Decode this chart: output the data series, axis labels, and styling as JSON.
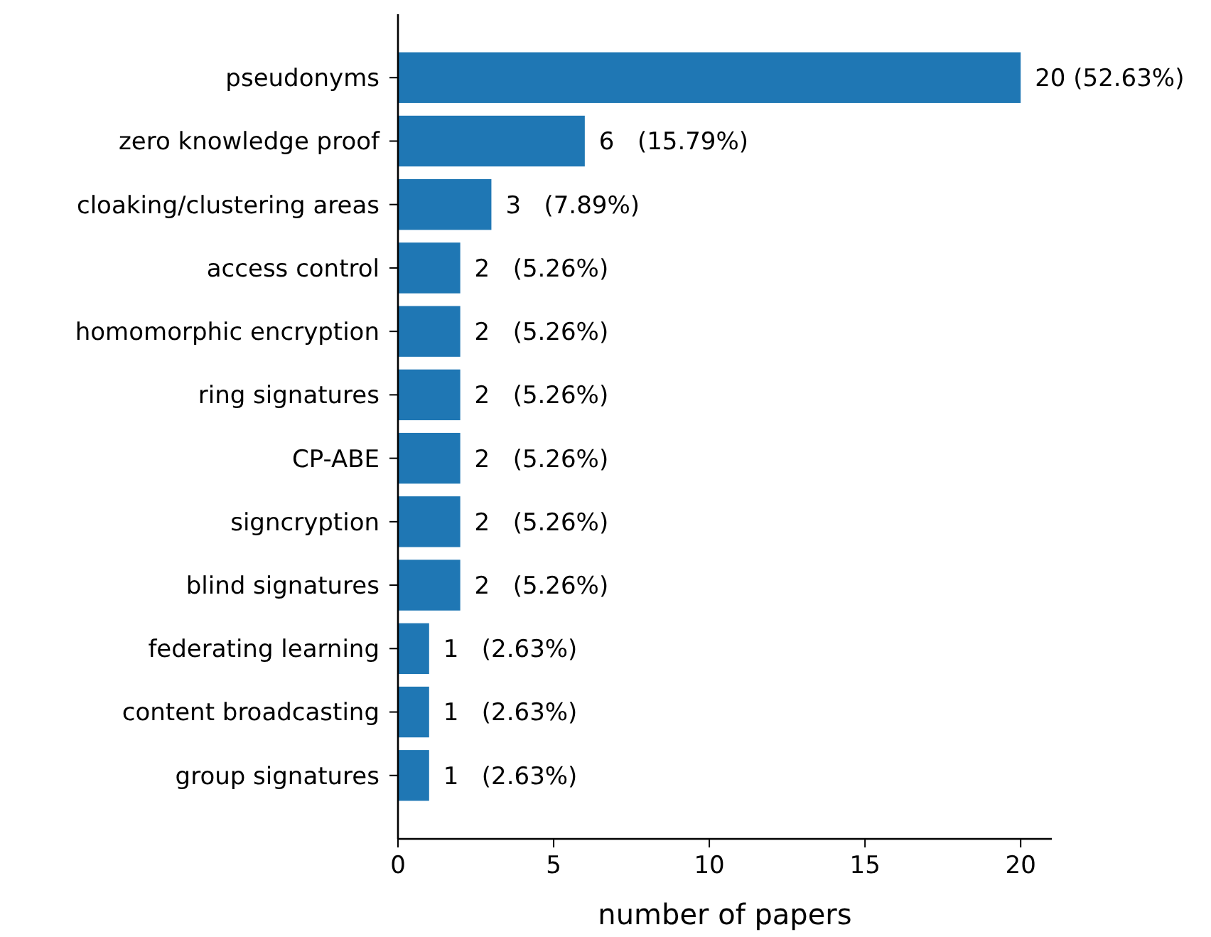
{
  "chart_data": {
    "type": "bar",
    "orientation": "horizontal",
    "xlabel": "number of papers",
    "categories": [
      "pseudonyms",
      "zero knowledge proof",
      "cloaking/clustering areas",
      "access control",
      "homomorphic encryption",
      "ring signatures",
      "CP-ABE",
      "signcryption",
      "blind signatures",
      "federating learning",
      "content broadcasting",
      "group signatures"
    ],
    "values": [
      20,
      6,
      3,
      2,
      2,
      2,
      2,
      2,
      2,
      1,
      1,
      1
    ],
    "value_labels": [
      "20 (52.63%)",
      "6   (15.79%)",
      "3   (7.89%)",
      "2   (5.26%)",
      "2   (5.26%)",
      "2   (5.26%)",
      "2   (5.26%)",
      "2   (5.26%)",
      "2   (5.26%)",
      "1   (2.63%)",
      "1   (2.63%)",
      "1   (2.63%)"
    ],
    "color": "#1f77b4",
    "xlim": [
      0,
      21
    ],
    "xticks": [
      0,
      5,
      10,
      15,
      20
    ],
    "grid": false
  }
}
